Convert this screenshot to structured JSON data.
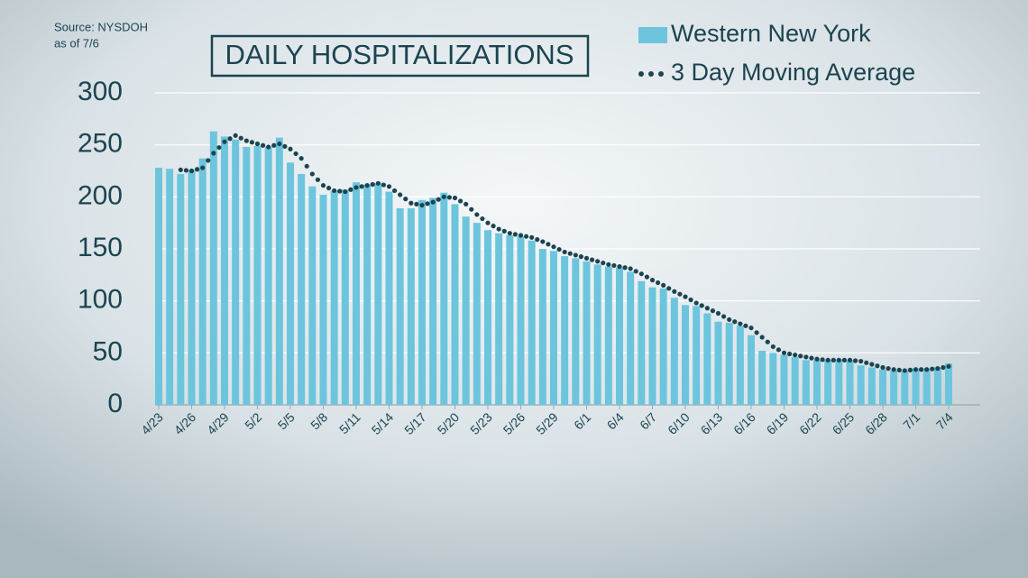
{
  "chart_data": {
    "type": "bar",
    "title": "DAILY HOSPITALIZATIONS",
    "source": "Source: NYSDOH",
    "source_date": "as of 7/6",
    "categories": [
      "4/23",
      null,
      null,
      "4/26",
      null,
      null,
      "4/29",
      null,
      null,
      "5/2",
      null,
      null,
      "5/5",
      null,
      null,
      "5/8",
      null,
      null,
      "5/11",
      null,
      null,
      "5/14",
      null,
      null,
      "5/17",
      null,
      null,
      "5/20",
      null,
      null,
      "5/23",
      null,
      null,
      "5/26",
      null,
      null,
      "5/29",
      null,
      null,
      "6/1",
      null,
      null,
      "6/4",
      null,
      null,
      "6/7",
      null,
      null,
      "6/10",
      null,
      null,
      "6/13",
      null,
      null,
      "6/16",
      null,
      null,
      "6/19",
      null,
      null,
      "6/22",
      null,
      null,
      "6/25",
      null,
      null,
      "6/28",
      null,
      null,
      "7/1",
      null,
      null,
      "7/4"
    ],
    "series": [
      {
        "name": "Western New York",
        "type": "bar",
        "color": "#6cc5dd",
        "values": [
          228,
          227,
          222,
          226,
          237,
          263,
          258,
          255,
          248,
          249,
          248,
          257,
          233,
          222,
          210,
          202,
          206,
          207,
          214,
          212,
          213,
          205,
          189,
          189,
          197,
          199,
          204,
          193,
          181,
          175,
          168,
          165,
          163,
          162,
          158,
          150,
          148,
          143,
          141,
          138,
          135,
          133,
          132,
          128,
          119,
          113,
          112,
          103,
          96,
          95,
          88,
          80,
          79,
          76,
          67,
          52,
          50,
          48,
          46,
          43,
          43,
          43,
          44,
          43,
          38,
          36,
          34,
          33,
          33,
          35,
          35,
          36,
          40
        ]
      },
      {
        "name": "3 Day Moving Average",
        "type": "line",
        "color": "#1c4450",
        "values": [
          null,
          null,
          226,
          225,
          228,
          242,
          253,
          259,
          254,
          251,
          248,
          251,
          246,
          237,
          222,
          211,
          206,
          205,
          209,
          211,
          213,
          210,
          202,
          194,
          192,
          195,
          200,
          199,
          193,
          183,
          175,
          169,
          165,
          163,
          161,
          157,
          152,
          147,
          144,
          141,
          138,
          135,
          133,
          131,
          126,
          120,
          115,
          109,
          104,
          98,
          93,
          88,
          82,
          78,
          74,
          65,
          56,
          50,
          48,
          46,
          44,
          43,
          43,
          43,
          42,
          39,
          36,
          34,
          33,
          34,
          34,
          35,
          37
        ]
      }
    ],
    "ylim": [
      0,
      300
    ],
    "yticks": [
      0,
      50,
      100,
      150,
      200,
      250,
      300
    ],
    "grid": true
  }
}
